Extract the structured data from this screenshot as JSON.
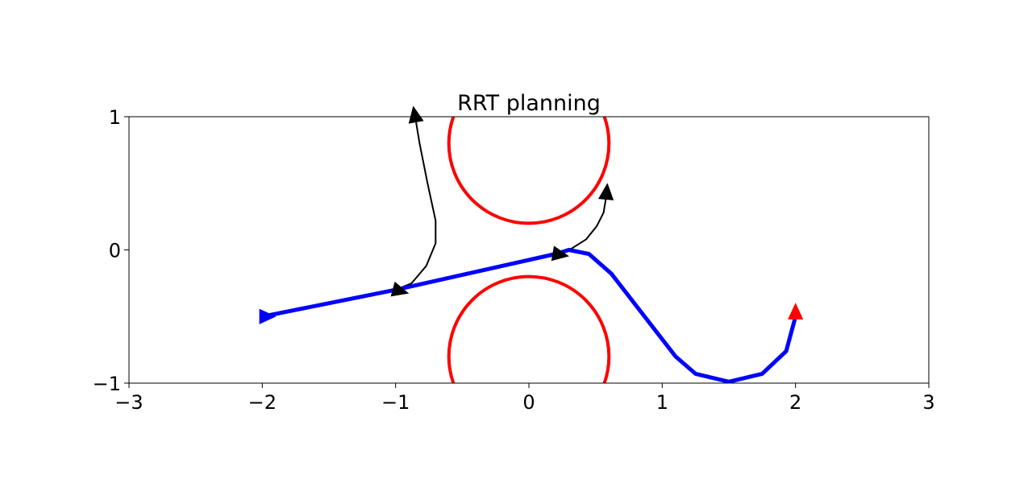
{
  "chart_data": {
    "type": "line",
    "title": "RRT planning",
    "xlabel": "",
    "ylabel": "",
    "xlim": [
      -3,
      3
    ],
    "ylim": [
      -1,
      1
    ],
    "x_ticks": [
      -3,
      -2,
      -1,
      0,
      1,
      2,
      3
    ],
    "y_ticks": [
      -1,
      0,
      1
    ],
    "x_tick_labels": [
      "−3",
      "−2",
      "−1",
      "0",
      "1",
      "2",
      "3"
    ],
    "y_tick_labels": [
      "−1",
      "0",
      "1"
    ],
    "grid": false,
    "obstacles": [
      {
        "cx": 0,
        "cy": 0.8,
        "r": 0.6,
        "color": "#ff0000"
      },
      {
        "cx": 0,
        "cy": -0.8,
        "r": 0.6,
        "color": "#ff0000"
      }
    ],
    "tree_edges": [
      {
        "color": "#000000",
        "points": [
          [
            -1.0,
            -0.3
          ],
          [
            -0.88,
            -0.25
          ],
          [
            -0.77,
            -0.12
          ],
          [
            -0.7,
            0.05
          ],
          [
            -0.7,
            0.22
          ],
          [
            -0.76,
            0.5
          ],
          [
            -0.82,
            0.8
          ],
          [
            -0.85,
            0.98
          ]
        ]
      },
      {
        "color": "#000000",
        "points": [
          [
            0.2,
            -0.03
          ],
          [
            0.32,
            0.01
          ],
          [
            0.43,
            0.08
          ],
          [
            0.51,
            0.18
          ],
          [
            0.56,
            0.28
          ],
          [
            0.58,
            0.4
          ]
        ]
      }
    ],
    "tree_nodes": [
      {
        "x": -1.0,
        "y": -0.3,
        "heading": -15,
        "color": "#000000"
      },
      {
        "x": -0.85,
        "y": 0.98,
        "heading": 100,
        "color": "#000000"
      },
      {
        "x": 0.2,
        "y": -0.03,
        "heading": -10,
        "color": "#000000"
      },
      {
        "x": 0.58,
        "y": 0.4,
        "heading": 85,
        "color": "#000000"
      }
    ],
    "path": {
      "color": "#0000ff",
      "points": [
        [
          -2.0,
          -0.5
        ],
        [
          -1.0,
          -0.3
        ],
        [
          0.2,
          -0.03
        ],
        [
          0.3,
          0.0
        ],
        [
          0.45,
          -0.03
        ],
        [
          0.62,
          -0.18
        ],
        [
          1.1,
          -0.8
        ],
        [
          1.25,
          -0.93
        ],
        [
          1.5,
          -0.99
        ],
        [
          1.75,
          -0.93
        ],
        [
          1.93,
          -0.76
        ],
        [
          2.0,
          -0.5
        ]
      ]
    },
    "start": {
      "x": -2.0,
      "y": -0.5,
      "heading": 0,
      "color": "#0000ff"
    },
    "goal": {
      "x": 2.0,
      "y": -0.5,
      "heading": 90,
      "color": "#ff0000"
    }
  }
}
